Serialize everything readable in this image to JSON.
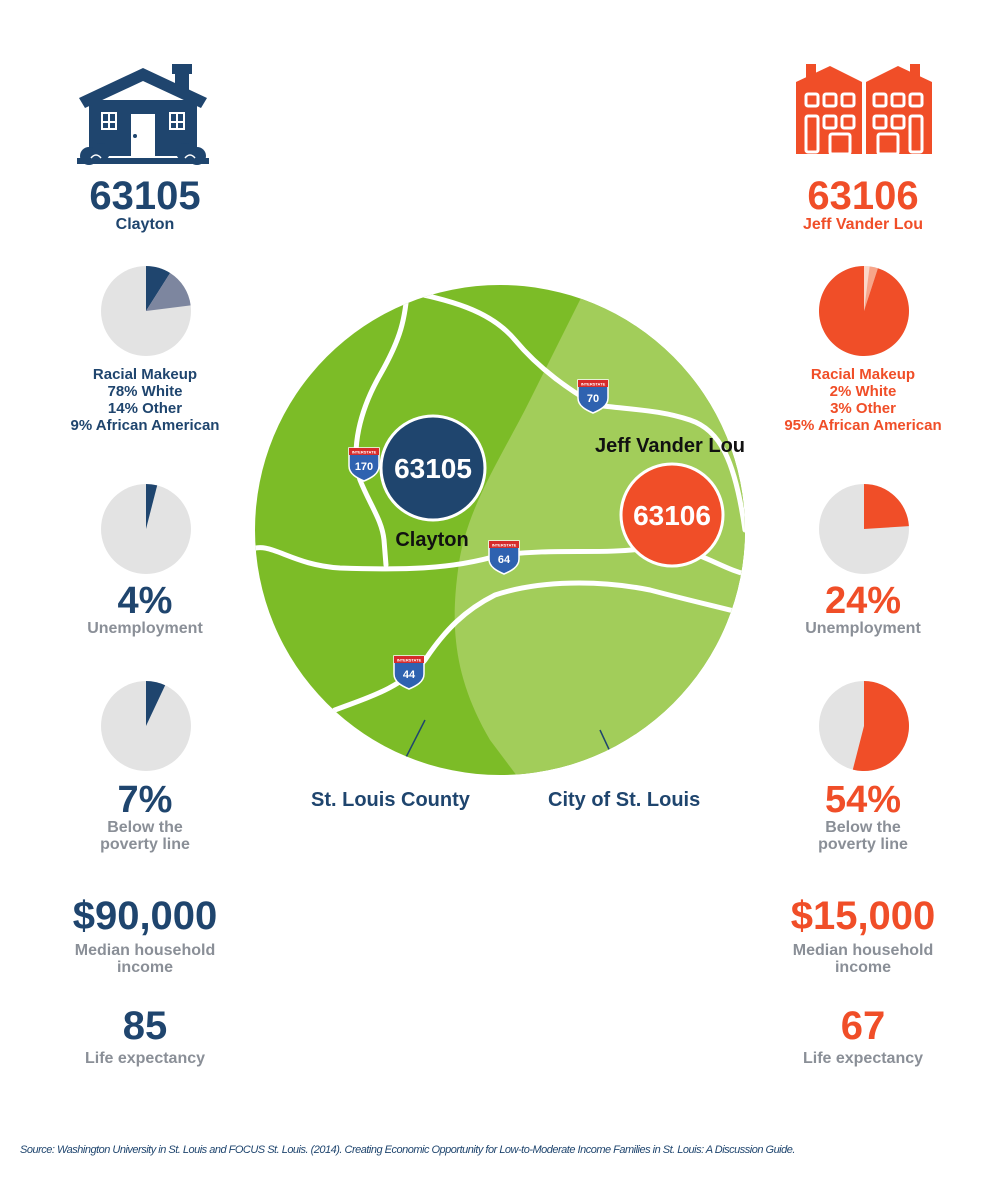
{
  "left": {
    "zip": "63105",
    "name": "Clayton",
    "race_title": "Racial Makeup",
    "race_lines": [
      "78% White",
      "14% Other",
      "9% African American"
    ],
    "race_values": {
      "white": 78,
      "other": 14,
      "african_american": 9
    },
    "unemployment_value": "4%",
    "unemployment_label": "Unemployment",
    "unemployment_fraction": 0.04,
    "poverty_value": "7%",
    "poverty_label_1": "Below the",
    "poverty_label_2": "poverty line",
    "poverty_fraction": 0.07,
    "income_value": "$90,000",
    "income_label_1": "Median household",
    "income_label_2": "income",
    "life_value": "85",
    "life_label": "Life expectancy",
    "color": "#1f456e",
    "icon": "house-icon"
  },
  "right": {
    "zip": "63106",
    "name": "Jeff Vander Lou",
    "race_title": "Racial Makeup",
    "race_lines": [
      "2% White",
      "3% Other",
      "95% African American"
    ],
    "race_values": {
      "white": 2,
      "other": 3,
      "african_american": 95
    },
    "unemployment_value": "24%",
    "unemployment_label": "Unemployment",
    "unemployment_fraction": 0.24,
    "poverty_value": "54%",
    "poverty_label_1": "Below the",
    "poverty_label_2": "poverty line",
    "poverty_fraction": 0.54,
    "income_value": "$15,000",
    "income_label_1": "Median household",
    "income_label_2": "income",
    "life_value": "67",
    "life_label": "Life expectancy",
    "color": "#f04e28",
    "icon": "apartment-building-icon"
  },
  "map": {
    "marker_left": "63105",
    "marker_right": "63106",
    "label_clayton": "Clayton",
    "label_jvl": "Jeff Vander Lou",
    "label_county": "St. Louis County",
    "label_city": "City of St. Louis",
    "highways": [
      "170",
      "70",
      "64",
      "44"
    ],
    "shield_text": "INTERSTATE",
    "county_color": "#7cbc27",
    "city_color": "#a2cd5a"
  },
  "source": "Source: Washington University in St. Louis and FOCUS St. Louis. (2014). Creating Economic Opportunity for Low-to-Moderate Income Families in St. Louis: A Discussion Guide."
}
